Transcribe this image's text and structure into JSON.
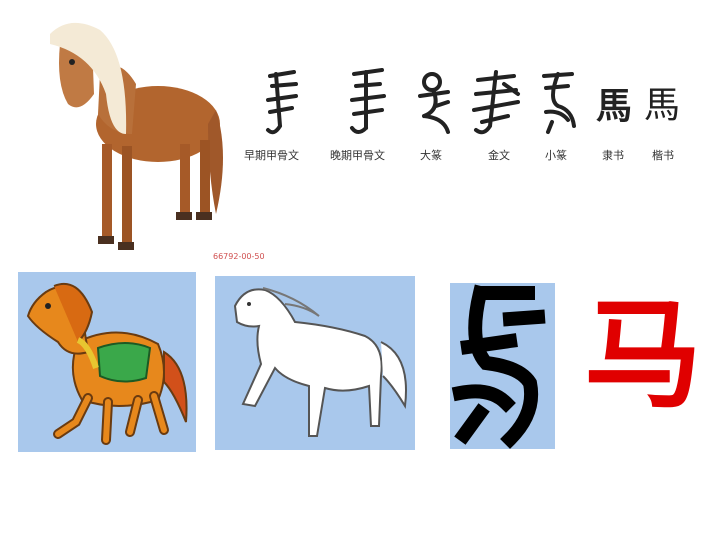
{
  "evolution": {
    "glyphs": [
      "𢒉",
      "𢒉",
      "马",
      "𢒉",
      "𢒉",
      "馬",
      "馬"
    ],
    "captions": [
      "早期甲骨文",
      "晚期甲骨文",
      "大篆",
      "金文",
      "小篆",
      "隶书",
      "楷书"
    ]
  },
  "watermark_code": "66792-00-50",
  "simplified_char": "马",
  "colors": {
    "panel_bg": "#a9c8ec",
    "accent_red": "#e00000"
  }
}
